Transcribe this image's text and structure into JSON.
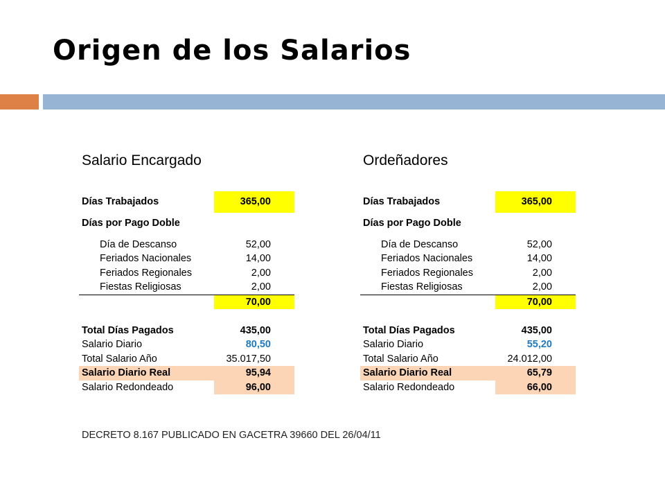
{
  "slide": {
    "title": "Origen de los Salarios",
    "decree": "DECRETO 8.167 PUBLICADO EN GACETRA 39660 DEL 26/04/11"
  },
  "colors": {
    "accent_orange": "#dd8146",
    "accent_blue": "#98b4d4",
    "highlight_yellow": "#ffff00",
    "highlight_peach": "#fbd5b5",
    "value_blue": "#1f7ac0"
  },
  "tables": [
    {
      "title": "Salario Encargado",
      "dias_trabajados_label": "Días Trabajados",
      "dias_trabajados_value": "365,00",
      "pago_doble_label": "Días por Pago Doble",
      "items": [
        {
          "label": "Día de Descanso",
          "value": "52,00"
        },
        {
          "label": "Feriados Nacionales",
          "value": "14,00"
        },
        {
          "label": "Feriados Regionales",
          "value": "2,00"
        },
        {
          "label": "Fiestas Religiosas",
          "value": "2,00"
        }
      ],
      "subtotal": "70,00",
      "total_dias_label": "Total Días Pagados",
      "total_dias_value": "435,00",
      "salario_diario_label": "Salario Diario",
      "salario_diario_value": "80,50",
      "total_salario_label": "Total Salario Año",
      "total_salario_value": "35.017,50",
      "salario_real_label": "Salario Diario Real",
      "salario_real_value": "95,94",
      "redondeado_label": "Salario Redondeado",
      "redondeado_value": "96,00"
    },
    {
      "title": "Ordeñadores",
      "dias_trabajados_label": "Días Trabajados",
      "dias_trabajados_value": "365,00",
      "pago_doble_label": "Días por Pago Doble",
      "items": [
        {
          "label": "Día de Descanso",
          "value": "52,00"
        },
        {
          "label": "Feriados Nacionales",
          "value": "14,00"
        },
        {
          "label": "Feriados Regionales",
          "value": "2,00"
        },
        {
          "label": "Fiestas Religiosas",
          "value": "2,00"
        }
      ],
      "subtotal": "70,00",
      "total_dias_label": "Total Días Pagados",
      "total_dias_value": "435,00",
      "salario_diario_label": "Salario Diario",
      "salario_diario_value": "55,20",
      "total_salario_label": "Total Salario Año",
      "total_salario_value": "24.012,00",
      "salario_real_label": "Salario Diario Real",
      "salario_real_value": "65,79",
      "redondeado_label": "Salario Redondeado",
      "redondeado_value": "66,00"
    }
  ]
}
